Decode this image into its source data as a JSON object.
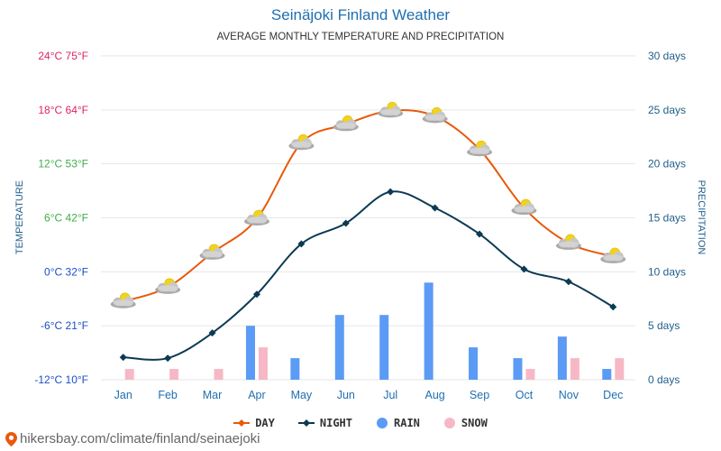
{
  "title": "Seinäjoki Finland Weather",
  "subtitle": "AVERAGE MONTHLY TEMPERATURE AND PRECIPITATION",
  "watermark": "hikersbay.com/climate/finland/seinaejoki",
  "colors": {
    "day": "#e8590c",
    "night": "#0b3a53",
    "rain": "#5b9bf5",
    "snow": "#f7b8c6",
    "title": "#1f6fb0",
    "right_axis": "#1f5f8b",
    "grid": "#e6e6e6"
  },
  "chart_data": {
    "type": "line",
    "title": "Seinäjoki Finland Weather",
    "subtitle": "AVERAGE MONTHLY TEMPERATURE AND PRECIPITATION",
    "categories": [
      "Jan",
      "Feb",
      "Mar",
      "Apr",
      "May",
      "Jun",
      "Jul",
      "Aug",
      "Sep",
      "Oct",
      "Nov",
      "Dec"
    ],
    "left_axis": {
      "label": "TEMPERATURE",
      "range_c": [
        -12,
        24
      ],
      "ticks": [
        {
          "value": 24,
          "label": "24°C 75°F",
          "color": "#e0245e"
        },
        {
          "value": 18,
          "label": "18°C 64°F",
          "color": "#e0245e"
        },
        {
          "value": 12,
          "label": "12°C 53°F",
          "color": "#3fae49"
        },
        {
          "value": 6,
          "label": "6°C 42°F",
          "color": "#3fae49"
        },
        {
          "value": 0,
          "label": "0°C 32°F",
          "color": "#1a4fc4"
        },
        {
          "value": -6,
          "label": "-6°C 21°F",
          "color": "#1a4fc4"
        },
        {
          "value": -12,
          "label": "-12°C 10°F",
          "color": "#1a4fc4"
        }
      ]
    },
    "right_axis": {
      "label": "PRECIPITATION",
      "range_days": [
        0,
        30
      ],
      "ticks": [
        {
          "value": 30,
          "label": "30 days"
        },
        {
          "value": 25,
          "label": "25 days"
        },
        {
          "value": 20,
          "label": "20 days"
        },
        {
          "value": 15,
          "label": "15 days"
        },
        {
          "value": 10,
          "label": "10 days"
        },
        {
          "value": 5,
          "label": "5 days"
        },
        {
          "value": 0,
          "label": "0 days"
        }
      ]
    },
    "series": [
      {
        "name": "DAY",
        "key": "day",
        "kind": "line",
        "axis": "left",
        "unit": "°C",
        "values": [
          -3.3,
          -1.7,
          2.1,
          5.9,
          14.3,
          16.4,
          17.9,
          17.3,
          13.6,
          7.1,
          3.2,
          1.7
        ]
      },
      {
        "name": "NIGHT",
        "key": "night",
        "kind": "line",
        "axis": "left",
        "unit": "°C",
        "values": [
          -9.5,
          -9.6,
          -6.8,
          -2.5,
          3.1,
          5.4,
          8.9,
          7.1,
          4.2,
          0.3,
          -1.1,
          -3.9
        ]
      },
      {
        "name": "RAIN",
        "key": "rain",
        "kind": "bar",
        "axis": "right",
        "unit": "days",
        "values": [
          0,
          0,
          0,
          5,
          2,
          6,
          6,
          9,
          3,
          2,
          4,
          1
        ]
      },
      {
        "name": "SNOW",
        "key": "snow",
        "kind": "bar",
        "axis": "right",
        "unit": "days",
        "values": [
          1,
          1,
          1,
          3,
          0,
          0,
          0,
          0,
          0,
          1,
          2,
          2
        ]
      }
    ],
    "weather_icon": "partly-cloudy-icon",
    "legend_position": "bottom-center",
    "grid": true
  },
  "legend": [
    {
      "label": "DAY",
      "key": "day",
      "symbol": "line-diamond"
    },
    {
      "label": "NIGHT",
      "key": "night",
      "symbol": "line-diamond"
    },
    {
      "label": "RAIN",
      "key": "rain",
      "symbol": "circle"
    },
    {
      "label": "SNOW",
      "key": "snow",
      "symbol": "circle"
    }
  ]
}
